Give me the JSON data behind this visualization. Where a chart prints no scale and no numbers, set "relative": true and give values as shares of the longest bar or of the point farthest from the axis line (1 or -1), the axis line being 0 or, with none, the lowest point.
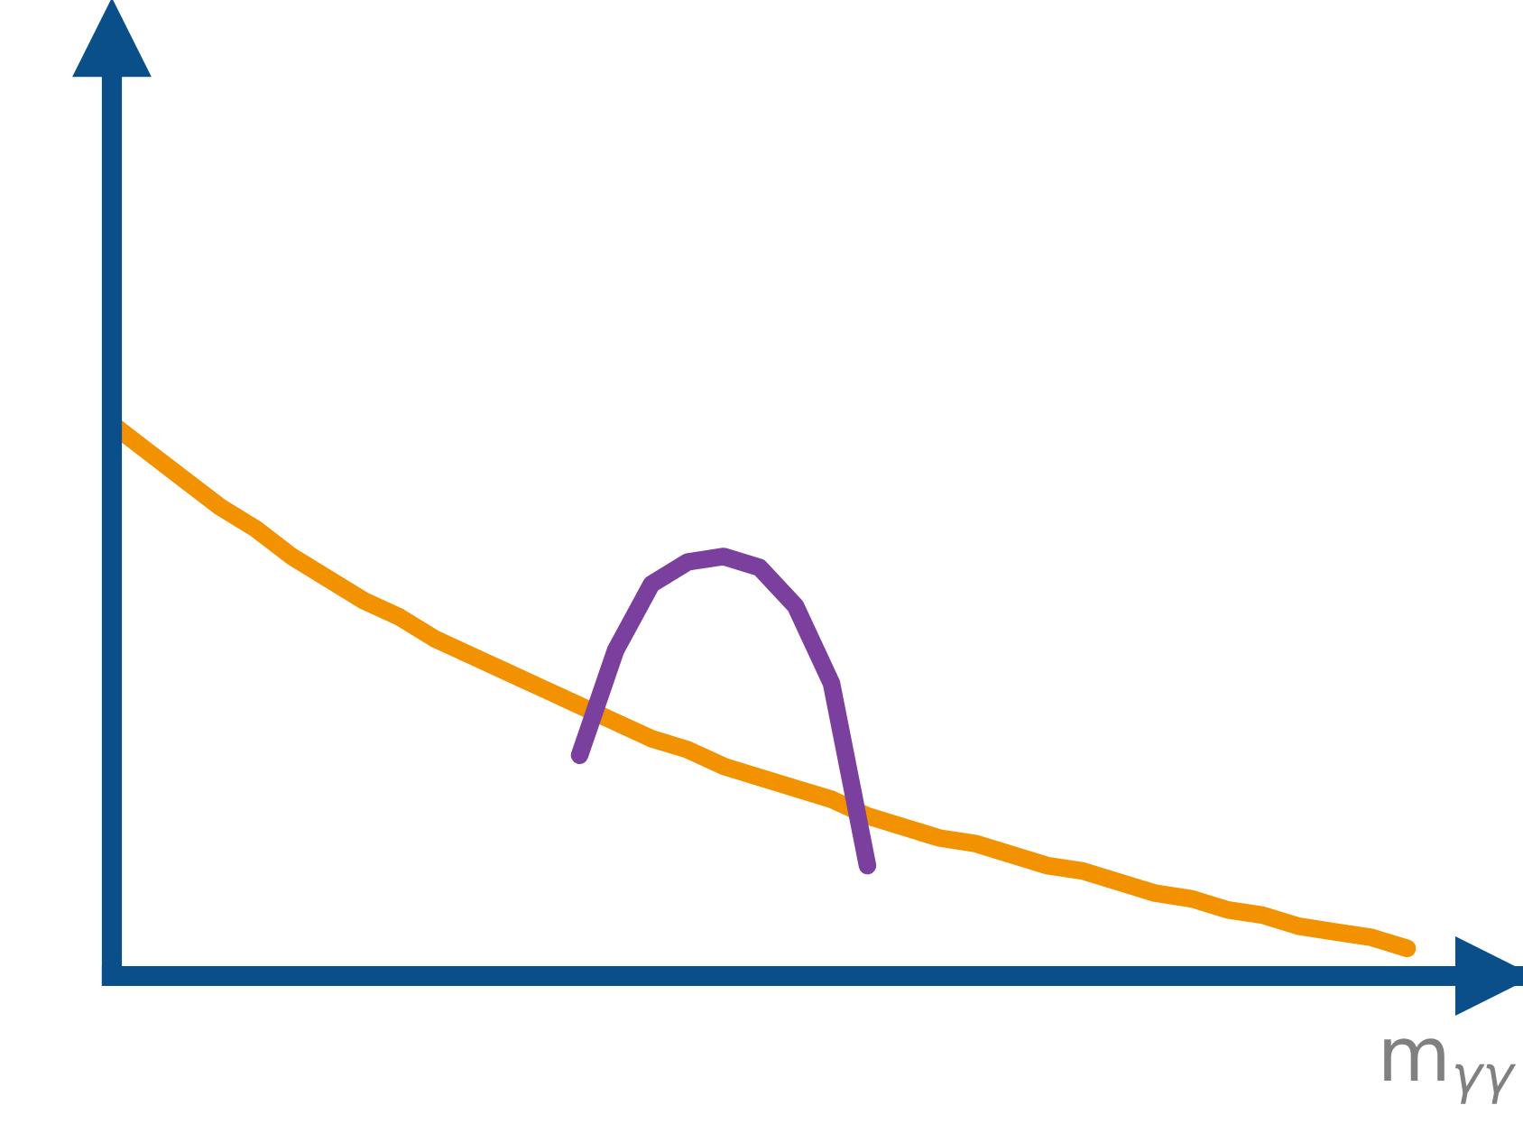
{
  "chart_data": {
    "type": "line",
    "relative": true,
    "xlabel": "m$_{γγ}$",
    "tick_labels": false,
    "grid": false,
    "legend": false,
    "marker": "none",
    "line_style": "solid",
    "categories": [
      null,
      null,
      null,
      null,
      null,
      null,
      null,
      null,
      null,
      null,
      null,
      null,
      null,
      null,
      null,
      null,
      null,
      null,
      null,
      null,
      null,
      null,
      null,
      null,
      null,
      null,
      null,
      null,
      null,
      null,
      null,
      null,
      null,
      null,
      null,
      null,
      null
    ],
    "series": [
      {
        "color": "#f39200",
        "values": [
          1.0,
          0.95,
          0.9,
          0.85,
          0.81,
          0.76,
          0.72,
          0.68,
          0.65,
          0.61,
          0.58,
          0.55,
          0.52,
          0.49,
          0.46,
          0.43,
          0.41,
          0.38,
          0.36,
          0.34,
          0.32,
          0.29,
          0.27,
          0.25,
          0.24,
          0.22,
          0.2,
          0.19,
          0.17,
          0.15,
          0.14,
          0.12,
          0.11,
          0.09,
          0.08,
          0.07,
          0.05
        ]
      },
      {
        "color": "#7b3f9e",
        "values": [
          null,
          null,
          null,
          null,
          null,
          null,
          null,
          null,
          null,
          null,
          null,
          null,
          null,
          0.4,
          0.59,
          0.71,
          0.75,
          0.76,
          0.74,
          0.67,
          0.53,
          0.2,
          null,
          null,
          null,
          null,
          null,
          null,
          null,
          null,
          null,
          null,
          null,
          null,
          null,
          null,
          null
        ]
      }
    ]
  }
}
